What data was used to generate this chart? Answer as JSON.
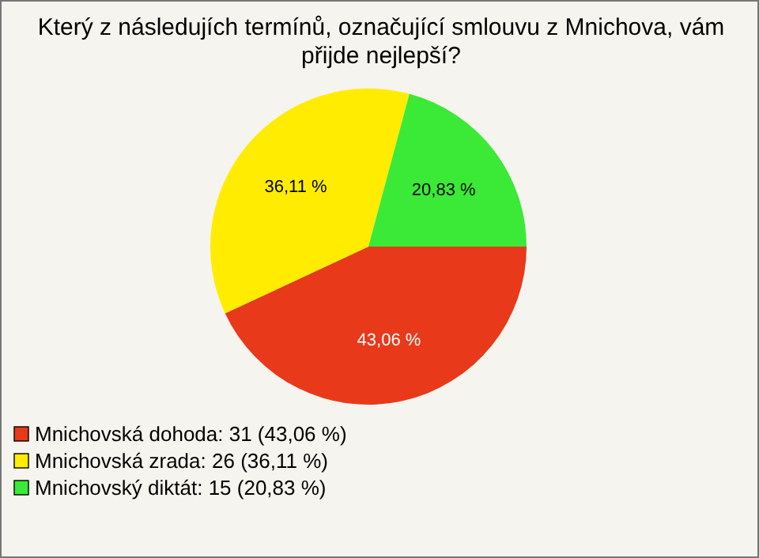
{
  "chart_data": {
    "type": "pie",
    "title": "Který z následujích termínů, označující smlouvu z Mnichova, vám přijde nejlepší?",
    "categories": [
      "Mnichovská dohoda: 31 (43,06 %)",
      "Mnichovská zrada: 26 (36,11 %)",
      "Mnichovský diktát: 15 (20,83 %)"
    ],
    "values": [
      43.06,
      36.11,
      20.83
    ],
    "colors": [
      "#e8391b",
      "#ffec00",
      "#3aea36"
    ],
    "value_labels": [
      "43,06 %",
      "36,11 %",
      "20,83 %"
    ],
    "legend": "bottom left"
  }
}
